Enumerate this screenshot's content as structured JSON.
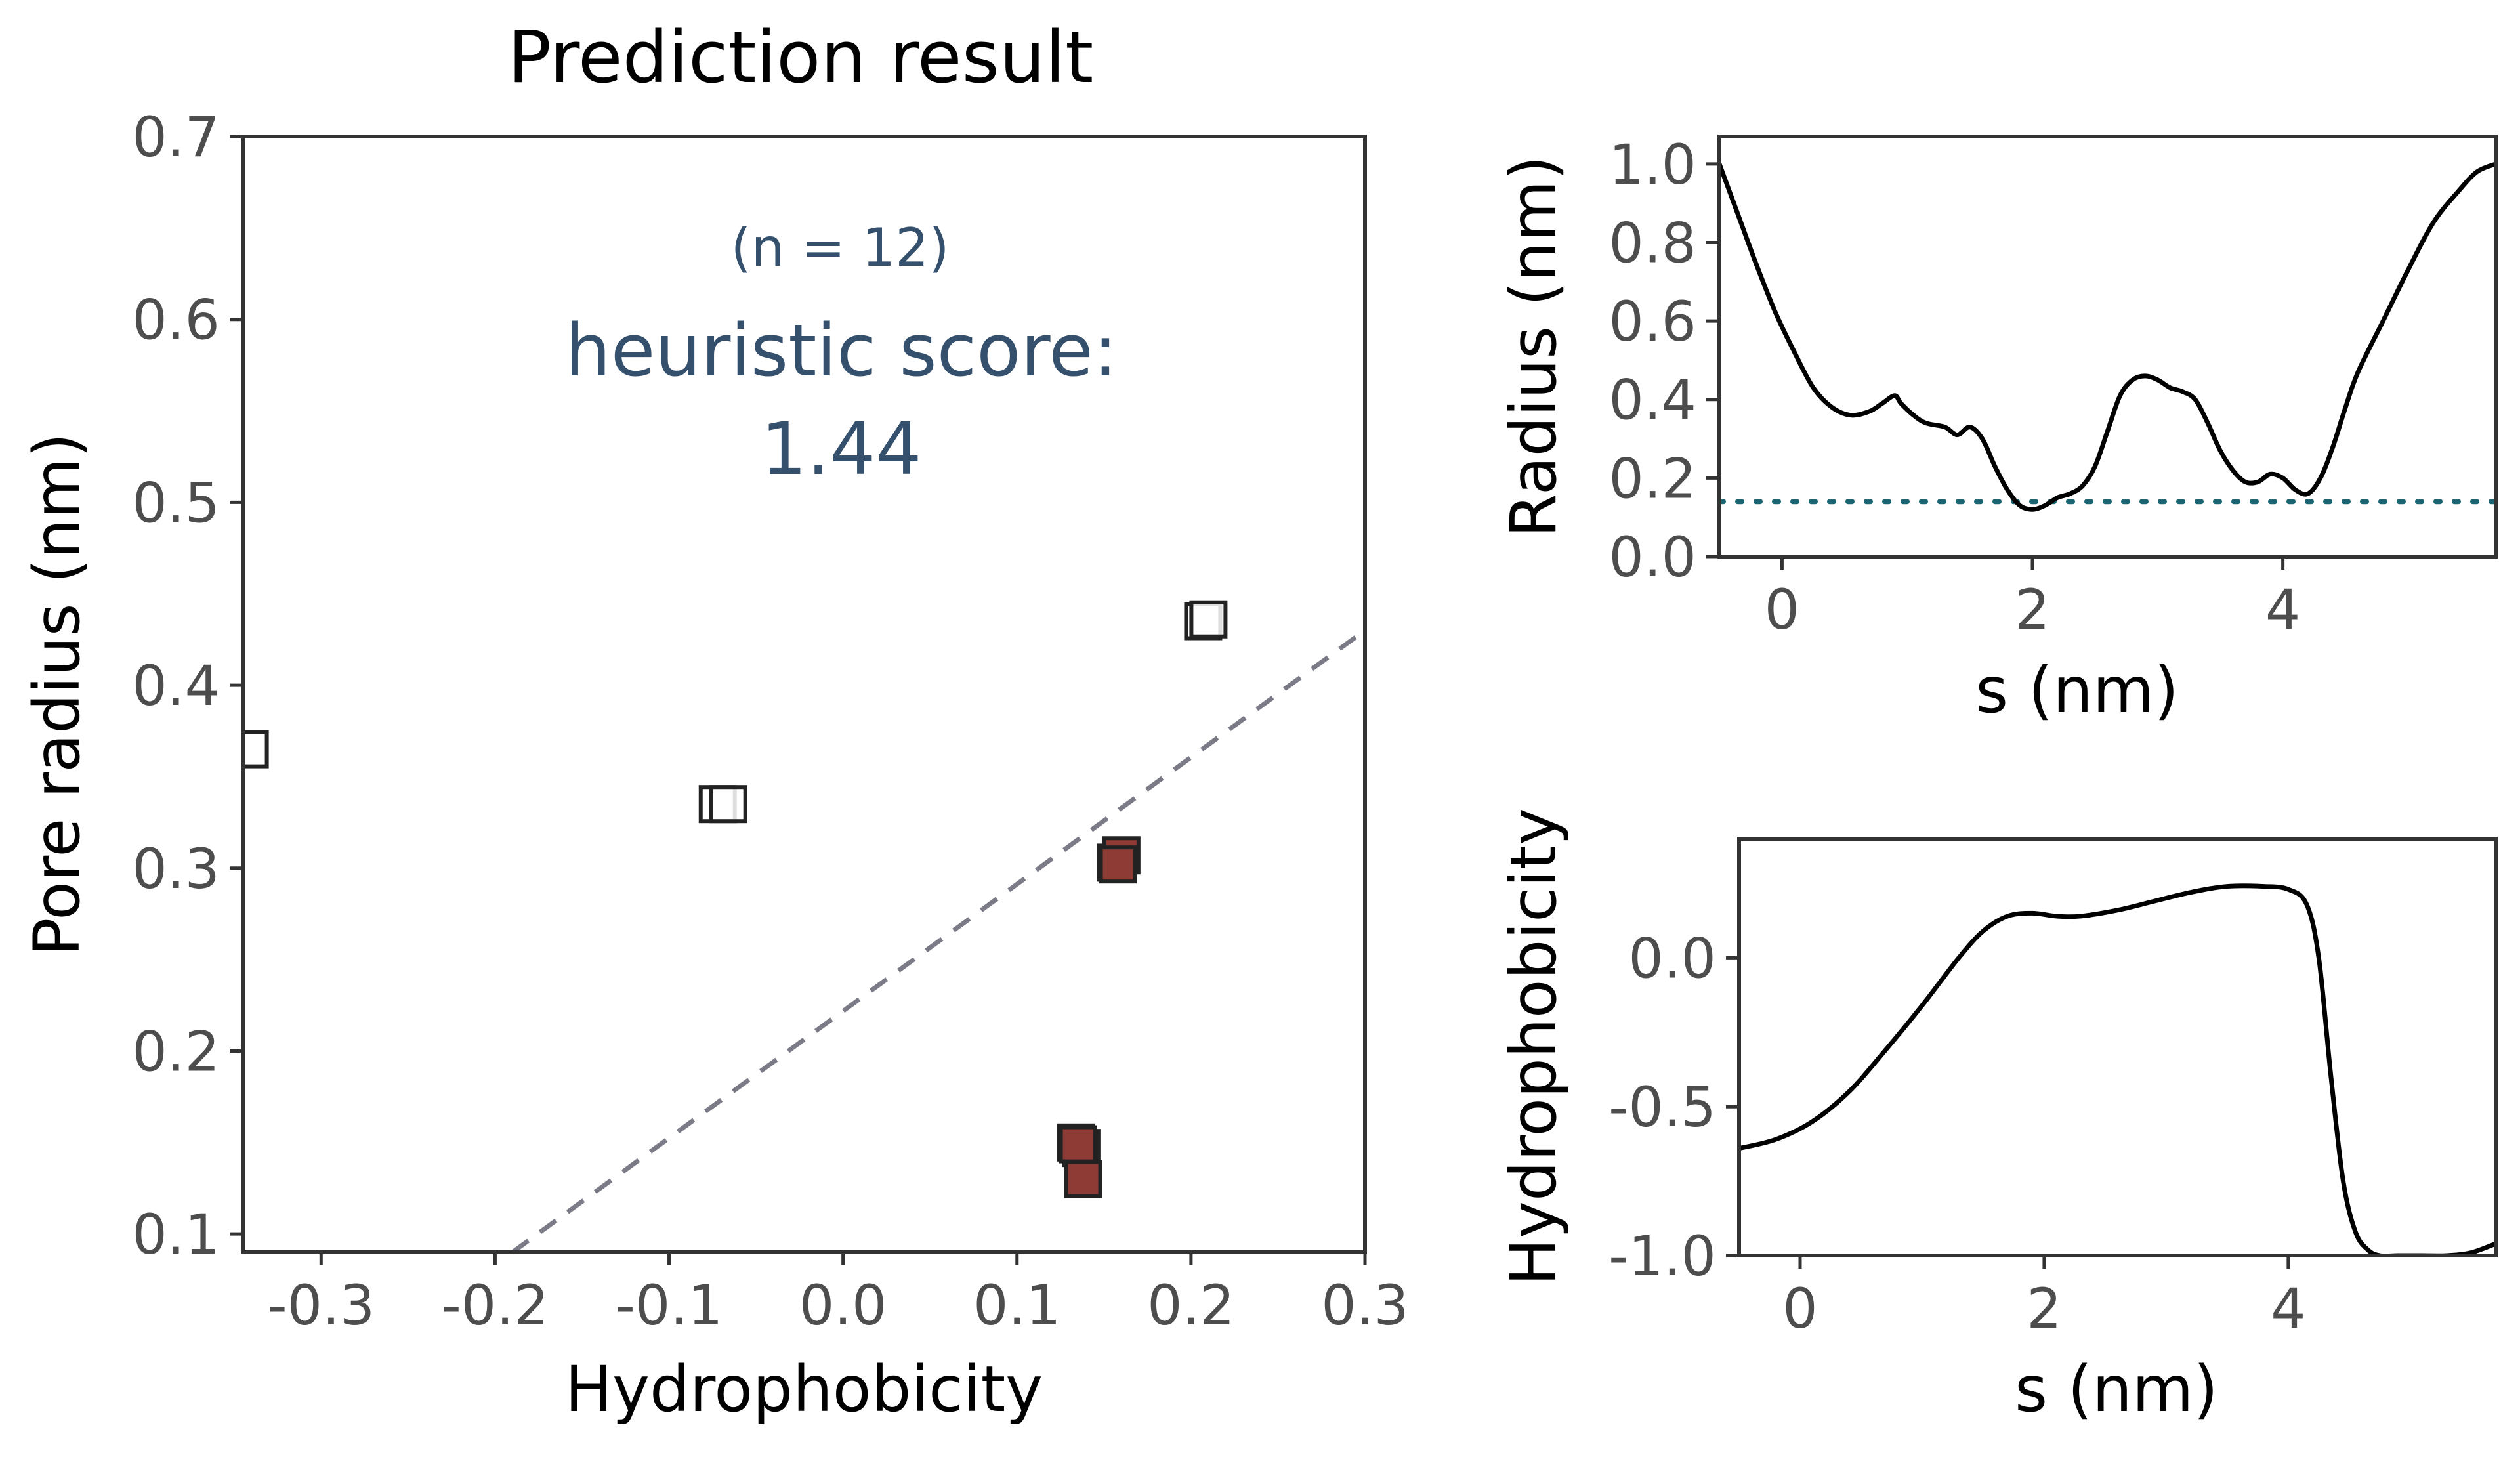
{
  "colors": {
    "frame": "#333333",
    "tick_text": "#4d4d4d",
    "annotation": "#34506d",
    "filled_marker": "#8e3b35",
    "marker_edge": "#222222",
    "dashed_line": "#7b7b87",
    "threshold_line": "#1c6673",
    "curve": "#000000"
  },
  "chart_data": [
    {
      "type": "scatter",
      "title": "Prediction result",
      "xlabel": "Hydrophobicity",
      "ylabel": "Pore radius (nm)",
      "xlim": [
        -0.345,
        0.3
      ],
      "ylim": [
        0.09,
        0.7
      ],
      "xticks": [
        -0.3,
        -0.2,
        -0.1,
        0.0,
        0.1,
        0.2,
        0.3
      ],
      "xtick_labels": [
        "-0.3",
        "-0.2",
        "-0.1",
        "0.0",
        "0.1",
        "0.2",
        "0.3"
      ],
      "yticks": [
        0.1,
        0.2,
        0.3,
        0.4,
        0.5,
        0.6,
        0.7
      ],
      "ytick_labels": [
        "0.1",
        "0.2",
        "0.3",
        "0.4",
        "0.5",
        "0.6",
        "0.7"
      ],
      "grid": false,
      "annotations": {
        "n_label": "(n = 12)",
        "score_label": "heuristic score:",
        "score_value": "1.44"
      },
      "reference_line": {
        "style": "dashed",
        "points": [
          [
            -0.19,
            0.09
          ],
          [
            0.3,
            0.43
          ]
        ]
      },
      "series": [
        {
          "marker": "open-square",
          "points": [
            [
              -0.341,
              0.365
            ],
            [
              -0.072,
              0.335
            ],
            [
              -0.066,
              0.335
            ],
            [
              0.207,
              0.435
            ],
            [
              0.21,
              0.436
            ]
          ]
        },
        {
          "marker": "filled-square",
          "points": [
            [
              0.157,
              0.303
            ],
            [
              0.16,
              0.307
            ],
            [
              0.158,
              0.302
            ],
            [
              0.134,
              0.15
            ],
            [
              0.137,
              0.147
            ],
            [
              0.135,
              0.149
            ],
            [
              0.138,
              0.13
            ]
          ]
        }
      ]
    },
    {
      "type": "line",
      "xlabel": "s (nm)",
      "ylabel": "Radius (nm)",
      "xlim": [
        -0.5,
        5.7
      ],
      "ylim": [
        0.0,
        1.07
      ],
      "xticks": [
        0,
        2,
        4
      ],
      "xtick_labels": [
        "0",
        "2",
        "4"
      ],
      "yticks": [
        0.0,
        0.2,
        0.4,
        0.6,
        0.8,
        1.0
      ],
      "ytick_labels": [
        "0.0",
        "0.2",
        "0.4",
        "0.6",
        "0.8",
        "1.0"
      ],
      "grid": false,
      "threshold": {
        "y": 0.14,
        "style": "dotted"
      },
      "x": [
        -0.5,
        -0.35,
        -0.2,
        -0.05,
        0.1,
        0.25,
        0.4,
        0.55,
        0.7,
        0.8,
        0.9,
        0.95,
        1.05,
        1.15,
        1.3,
        1.4,
        1.5,
        1.6,
        1.7,
        1.8,
        1.9,
        2.0,
        2.1,
        2.2,
        2.3,
        2.4,
        2.5,
        2.6,
        2.7,
        2.8,
        2.9,
        3.0,
        3.1,
        3.2,
        3.3,
        3.4,
        3.5,
        3.6,
        3.7,
        3.8,
        3.9,
        4.0,
        4.1,
        4.2,
        4.3,
        4.4,
        4.5,
        4.6,
        4.8,
        5.0,
        5.2,
        5.4,
        5.55,
        5.7
      ],
      "y": [
        1.0,
        0.87,
        0.74,
        0.62,
        0.52,
        0.43,
        0.38,
        0.36,
        0.37,
        0.39,
        0.41,
        0.39,
        0.36,
        0.34,
        0.33,
        0.31,
        0.33,
        0.3,
        0.23,
        0.17,
        0.13,
        0.12,
        0.13,
        0.15,
        0.16,
        0.18,
        0.23,
        0.32,
        0.41,
        0.45,
        0.46,
        0.45,
        0.43,
        0.42,
        0.4,
        0.34,
        0.27,
        0.22,
        0.19,
        0.19,
        0.21,
        0.2,
        0.17,
        0.16,
        0.2,
        0.28,
        0.38,
        0.47,
        0.6,
        0.73,
        0.85,
        0.93,
        0.98,
        1.0
      ]
    },
    {
      "type": "line",
      "xlabel": "s (nm)",
      "ylabel": "Hydrophobicity",
      "xlim": [
        -0.5,
        5.7
      ],
      "ylim": [
        -1.0,
        0.4
      ],
      "xticks": [
        0,
        2,
        4
      ],
      "xtick_labels": [
        "0",
        "2",
        "4"
      ],
      "yticks": [
        -1.0,
        -0.5,
        0.0
      ],
      "ytick_labels": [
        "-1.0",
        "-0.5",
        "0.0"
      ],
      "grid": false,
      "x": [
        -0.5,
        -0.2,
        0.1,
        0.4,
        0.7,
        1.0,
        1.3,
        1.5,
        1.7,
        1.9,
        2.1,
        2.3,
        2.6,
        2.9,
        3.2,
        3.5,
        3.8,
        4.0,
        4.15,
        4.25,
        4.35,
        4.45,
        4.55,
        4.65,
        4.75,
        4.9,
        5.1,
        5.3,
        5.5,
        5.7
      ],
      "y": [
        -0.64,
        -0.61,
        -0.55,
        -0.45,
        -0.31,
        -0.16,
        0.0,
        0.09,
        0.14,
        0.15,
        0.14,
        0.14,
        0.16,
        0.19,
        0.22,
        0.24,
        0.24,
        0.23,
        0.18,
        0.0,
        -0.4,
        -0.75,
        -0.92,
        -0.98,
        -1.0,
        -1.0,
        -1.0,
        -1.0,
        -0.99,
        -0.96
      ]
    }
  ]
}
